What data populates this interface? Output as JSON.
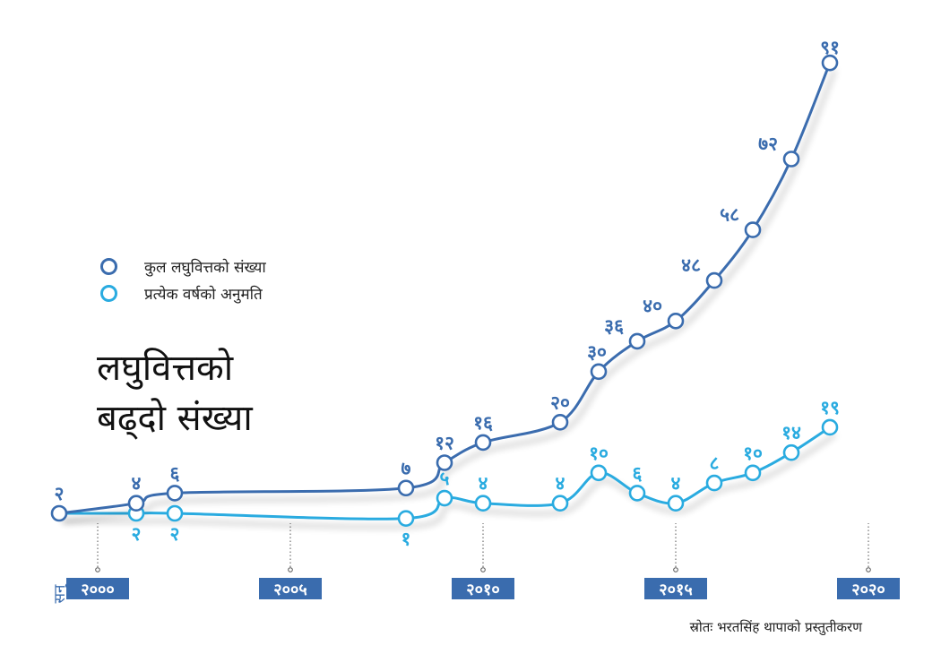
{
  "title_lines": [
    "लघुवित्तको",
    "बढ्दो संख्या"
  ],
  "source": "स्रोतः भरतसिंह थापाको प्रस्तुतीकरण",
  "colors": {
    "total": "#3a6cae",
    "annual": "#29abe0",
    "axis_box": "#3a6cae"
  },
  "chart_data": {
    "type": "line",
    "title": "लघुवित्तको बढ्दो संख्या",
    "xlabel": "सन्",
    "ylabel": "",
    "xticks": [
      {
        "year": 2000,
        "label": "२०००"
      },
      {
        "year": 2005,
        "label": "२००५"
      },
      {
        "year": 2010,
        "label": "२०१०"
      },
      {
        "year": 2015,
        "label": "२०१५"
      },
      {
        "year": 2020,
        "label": "२०२०"
      }
    ],
    "grid": false,
    "legend": "left",
    "series": [
      {
        "name": "कुल लघुवित्तको संख्या",
        "color": "#3a6cae",
        "points": [
          {
            "x": 1999,
            "y": 2,
            "label": "२"
          },
          {
            "x": 2001,
            "y": 4,
            "label": "४"
          },
          {
            "x": 2002,
            "y": 6,
            "label": "६"
          },
          {
            "x": 2008,
            "y": 7,
            "label": "७"
          },
          {
            "x": 2009,
            "y": 12,
            "label": "१२"
          },
          {
            "x": 2010,
            "y": 16,
            "label": "१६"
          },
          {
            "x": 2012,
            "y": 20,
            "label": "२०"
          },
          {
            "x": 2013,
            "y": 30,
            "label": "३०"
          },
          {
            "x": 2014,
            "y": 36,
            "label": "३६"
          },
          {
            "x": 2015,
            "y": 40,
            "label": "४०"
          },
          {
            "x": 2016,
            "y": 48,
            "label": "४८"
          },
          {
            "x": 2017,
            "y": 58,
            "label": "५८"
          },
          {
            "x": 2018,
            "y": 72,
            "label": "७२"
          },
          {
            "x": 2019,
            "y": 91,
            "label": "९१"
          }
        ]
      },
      {
        "name": "प्रत्येक वर्षको अनुमति",
        "color": "#29abe0",
        "points": [
          {
            "x": 1999,
            "y": 2,
            "label": ""
          },
          {
            "x": 2001,
            "y": 2,
            "label": "२"
          },
          {
            "x": 2002,
            "y": 2,
            "label": "२"
          },
          {
            "x": 2008,
            "y": 1,
            "label": "१"
          },
          {
            "x": 2009,
            "y": 5,
            "label": "५"
          },
          {
            "x": 2010,
            "y": 4,
            "label": "४"
          },
          {
            "x": 2012,
            "y": 4,
            "label": "४"
          },
          {
            "x": 2013,
            "y": 10,
            "label": "१०"
          },
          {
            "x": 2014,
            "y": 6,
            "label": "६"
          },
          {
            "x": 2015,
            "y": 4,
            "label": "४"
          },
          {
            "x": 2016,
            "y": 8,
            "label": "८"
          },
          {
            "x": 2017,
            "y": 10,
            "label": "१०"
          },
          {
            "x": 2018,
            "y": 14,
            "label": "१४"
          },
          {
            "x": 2019,
            "y": 19,
            "label": "१९"
          }
        ]
      }
    ]
  }
}
